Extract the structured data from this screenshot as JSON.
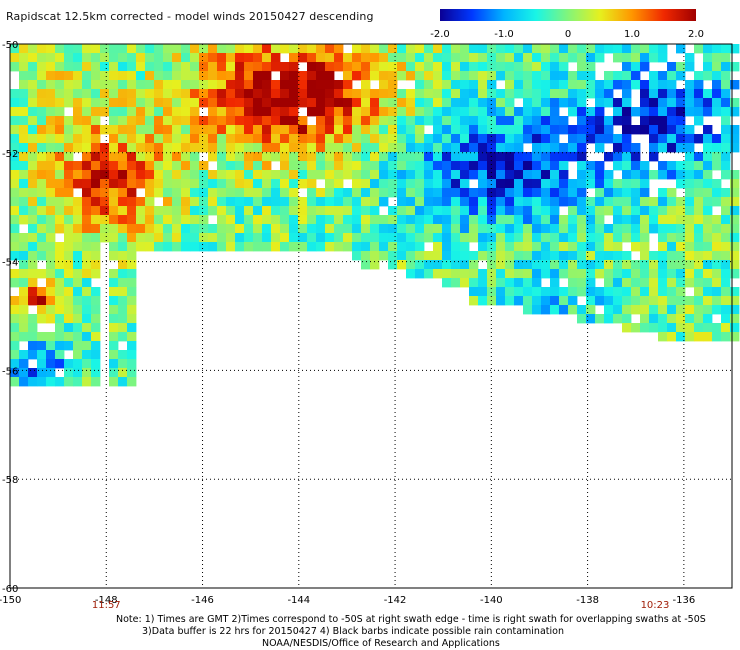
{
  "header": {
    "title": "Rapidscat 12.5km corrected - model winds 20150427 descending"
  },
  "colorbar": {
    "tick_labels": [
      "-2.0",
      "-1.0",
      "0",
      "1.0",
      "2.0"
    ],
    "tick_values": [
      -2.0,
      -1.0,
      0,
      1.0,
      2.0
    ],
    "range": [
      -2.0,
      2.0
    ],
    "colors": [
      "#0a0094",
      "#0038ff",
      "#00b4ff",
      "#19f5e6",
      "#82f57a",
      "#e6f01e",
      "#ff9600",
      "#f02800",
      "#a00000"
    ]
  },
  "map": {
    "lon_range": [
      -150,
      -135
    ],
    "lat_range": [
      -60,
      -50
    ],
    "x_tick_labels": [
      "-150",
      "-148",
      "-146",
      "-144",
      "-142",
      "-140",
      "-138",
      "-136"
    ],
    "x_tick_values": [
      -150,
      -148,
      -146,
      -144,
      -142,
      -140,
      -138,
      -136
    ],
    "y_tick_labels": [
      "-50",
      "-52",
      "-54",
      "-56",
      "-58",
      "-60"
    ],
    "y_tick_values": [
      -50,
      -52,
      -54,
      -56,
      -58,
      -60
    ],
    "grid": "dotted",
    "colors": {
      "frame": "#000000",
      "grid": "#000000",
      "land_missing": "#ffffff"
    }
  },
  "times": [
    {
      "label": "11:57",
      "lon": -148
    },
    {
      "label": "10:23",
      "lon": -136.6
    }
  ],
  "notes": {
    "line1": "Note: 1) Times are GMT 2)Times correspond to -50S at right swath edge - time is right swath for overlapping swaths at -50S",
    "line2": "3)Data buffer is 22 hrs for 20150427 4) Black barbs indicate possible rain contamination",
    "line3": "NOAA/NESDIS/Office of Research and Applications"
  }
}
